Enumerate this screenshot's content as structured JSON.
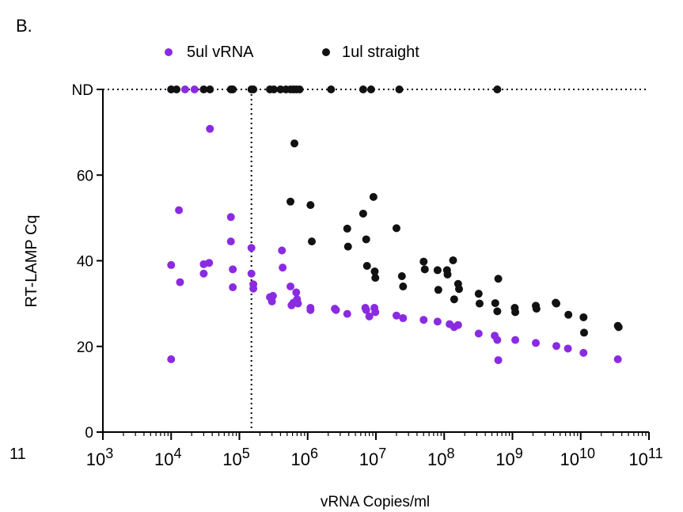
{
  "panel_label": "B.",
  "stray_label": "11",
  "colors": {
    "series_1": "#8a2be2",
    "series_2": "#111111"
  },
  "chart_data": {
    "type": "scatter",
    "title": "",
    "xlabel": "vRNA Copies/ml",
    "ylabel": "RT-LAMP Cq",
    "x_scale": "log10",
    "xlim": [
      1000,
      100000000000
    ],
    "x_tick_exponents": [
      3,
      4,
      5,
      6,
      7,
      8,
      9,
      10,
      11
    ],
    "x_tick_base": "10",
    "ylim": [
      0,
      80
    ],
    "y_ticks": [
      0,
      20,
      40,
      60
    ],
    "nd_label": "ND",
    "nd_value": 80,
    "vline_x": 150000,
    "legend_position": "top",
    "grid": false,
    "series": [
      {
        "name": "5ul vRNA",
        "color": "#8a2be2",
        "points": [
          [
            10000,
            "ND"
          ],
          [
            16000,
            "ND"
          ],
          [
            22000,
            "ND"
          ],
          [
            10000,
            17.0
          ],
          [
            10000,
            39.0
          ],
          [
            13000,
            51.8
          ],
          [
            13500,
            35.0
          ],
          [
            30000,
            37.0
          ],
          [
            30000,
            39.2
          ],
          [
            36000,
            39.5
          ],
          [
            37000,
            70.8
          ],
          [
            75000,
            50.2
          ],
          [
            75000,
            44.5
          ],
          [
            80000,
            38.0
          ],
          [
            80000,
            33.8
          ],
          [
            150000,
            43.0
          ],
          [
            150000,
            37.0
          ],
          [
            160000,
            34.5
          ],
          [
            160000,
            33.5
          ],
          [
            280000,
            31.5
          ],
          [
            300000,
            30.5
          ],
          [
            310000,
            31.8
          ],
          [
            420000,
            42.4
          ],
          [
            430000,
            38.4
          ],
          [
            560000,
            34.0
          ],
          [
            580000,
            29.6
          ],
          [
            620000,
            30.2
          ],
          [
            680000,
            32.6
          ],
          [
            700000,
            31.0
          ],
          [
            720000,
            30.0
          ],
          [
            1100000,
            29.0
          ],
          [
            1100000,
            28.5
          ],
          [
            2500000,
            28.8
          ],
          [
            2600000,
            28.5
          ],
          [
            3800000,
            27.6
          ],
          [
            7000000,
            29.0
          ],
          [
            7200000,
            28.5
          ],
          [
            8000000,
            27.0
          ],
          [
            9500000,
            29.0
          ],
          [
            9800000,
            28.0
          ],
          [
            20000000,
            27.2
          ],
          [
            25000000,
            26.6
          ],
          [
            50000000,
            26.2
          ],
          [
            80000000,
            25.8
          ],
          [
            120000000,
            25.2
          ],
          [
            140000000,
            24.5
          ],
          [
            160000000,
            25.0
          ],
          [
            320000000,
            23.0
          ],
          [
            550000000,
            22.5
          ],
          [
            600000000,
            21.5
          ],
          [
            620000000,
            16.8
          ],
          [
            1100000000,
            21.5
          ],
          [
            2200000000,
            20.8
          ],
          [
            4400000000,
            20.1
          ],
          [
            6500000000,
            19.5
          ],
          [
            11000000000,
            18.5
          ],
          [
            35000000000,
            17.0
          ]
        ]
      },
      {
        "name": "1ul straight",
        "color": "#111111",
        "points": [
          [
            10000,
            "ND"
          ],
          [
            12000,
            "ND"
          ],
          [
            30000,
            "ND"
          ],
          [
            37000,
            "ND"
          ],
          [
            75000,
            "ND"
          ],
          [
            80000,
            "ND"
          ],
          [
            150000,
            "ND"
          ],
          [
            160000,
            "ND"
          ],
          [
            280000,
            "ND"
          ],
          [
            320000,
            "ND"
          ],
          [
            400000,
            "ND"
          ],
          [
            480000,
            "ND"
          ],
          [
            560000,
            "ND"
          ],
          [
            620000,
            "ND"
          ],
          [
            680000,
            "ND"
          ],
          [
            760000,
            "ND"
          ],
          [
            2200000,
            "ND"
          ],
          [
            6500000,
            "ND"
          ],
          [
            8500000,
            "ND"
          ],
          [
            22000000,
            "ND"
          ],
          [
            600000000,
            "ND"
          ],
          [
            560000,
            53.8
          ],
          [
            640000,
            67.4
          ],
          [
            1100000,
            53.0
          ],
          [
            1150000,
            44.5
          ],
          [
            3800000,
            47.5
          ],
          [
            3900000,
            43.3
          ],
          [
            6500000,
            51.0
          ],
          [
            7200000,
            45.0
          ],
          [
            7400000,
            38.8
          ],
          [
            9200000,
            54.9
          ],
          [
            9600000,
            37.5
          ],
          [
            9800000,
            36.0
          ],
          [
            20000000,
            47.6
          ],
          [
            24000000,
            36.4
          ],
          [
            25000000,
            34.0
          ],
          [
            50000000,
            39.8
          ],
          [
            52000000,
            38.0
          ],
          [
            80000000,
            37.8
          ],
          [
            82000000,
            33.2
          ],
          [
            110000000,
            37.8
          ],
          [
            112000000,
            36.8
          ],
          [
            135000000,
            40.1
          ],
          [
            140000000,
            31.0
          ],
          [
            160000000,
            34.6
          ],
          [
            165000000,
            33.4
          ],
          [
            320000000,
            32.3
          ],
          [
            330000000,
            30.0
          ],
          [
            560000000,
            30.1
          ],
          [
            600000000,
            28.2
          ],
          [
            620000000,
            35.8
          ],
          [
            1080000000,
            29.0
          ],
          [
            1100000000,
            28.0
          ],
          [
            2200000000,
            29.5
          ],
          [
            2250000000,
            28.8
          ],
          [
            4300000000,
            30.2
          ],
          [
            4400000000,
            30.0
          ],
          [
            6600000000,
            27.4
          ],
          [
            11000000000,
            26.8
          ],
          [
            11200000000,
            23.2
          ],
          [
            35000000000,
            24.8
          ],
          [
            36000000000,
            24.5
          ]
        ]
      }
    ]
  }
}
